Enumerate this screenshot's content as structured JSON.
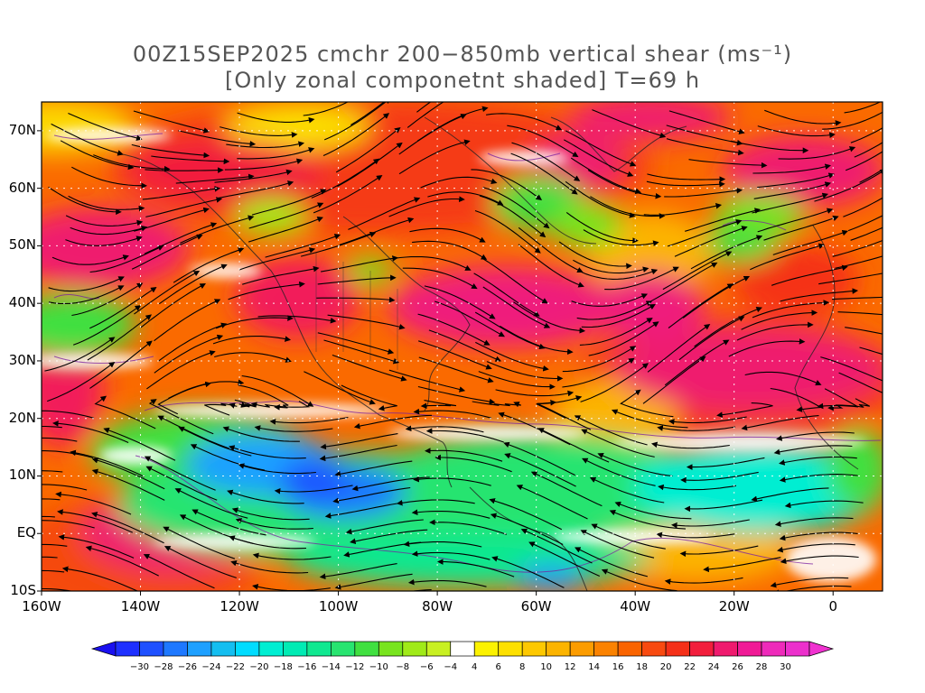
{
  "title": {
    "line1": "00Z15SEP2025 cmchr 200−850mb vertical shear (ms⁻¹)",
    "line2": "[Only zonal componetnt shaded] T=69 h"
  },
  "map": {
    "domain": "Atlantic and eastern Pacific",
    "lon_range": [
      -160,
      10
    ],
    "lat_range": [
      -10,
      75
    ],
    "lat_ticks": [
      {
        "value": 70,
        "label": "70N"
      },
      {
        "value": 60,
        "label": "60N"
      },
      {
        "value": 50,
        "label": "50N"
      },
      {
        "value": 40,
        "label": "40N"
      },
      {
        "value": 30,
        "label": "30N"
      },
      {
        "value": 20,
        "label": "20N"
      },
      {
        "value": 10,
        "label": "10N"
      },
      {
        "value": 0,
        "label": "EQ"
      },
      {
        "value": -10,
        "label": "10S"
      }
    ],
    "lon_ticks": [
      {
        "value": -160,
        "label": "160W"
      },
      {
        "value": -140,
        "label": "140W"
      },
      {
        "value": -120,
        "label": "120W"
      },
      {
        "value": -100,
        "label": "100W"
      },
      {
        "value": -80,
        "label": "80W"
      },
      {
        "value": -60,
        "label": "60W"
      },
      {
        "value": -40,
        "label": "40W"
      },
      {
        "value": -20,
        "label": "20W"
      },
      {
        "value": 0,
        "label": "0"
      }
    ]
  },
  "colorbar": {
    "labels": [
      "−30",
      "−28",
      "−26",
      "−24",
      "−22",
      "−20",
      "−18",
      "−16",
      "−14",
      "−12",
      "−10",
      "−8",
      "−6",
      "−4",
      "4",
      "6",
      "8",
      "10",
      "12",
      "14",
      "16",
      "18",
      "20",
      "22",
      "24",
      "26",
      "28",
      "30"
    ],
    "low_color": "#1a10f0",
    "high_color": "#f032d0",
    "colors": [
      "#1e30ff",
      "#1e50ff",
      "#1e78ff",
      "#1ea0ff",
      "#14bef0",
      "#00dcff",
      "#00eed2",
      "#00ebb4",
      "#10e890",
      "#28e470",
      "#40e040",
      "#78e41e",
      "#a0ea18",
      "#c8f022",
      "#ffffff",
      "#fcf200",
      "#fde000",
      "#fdc800",
      "#fcb400",
      "#fc9c00",
      "#fb8200",
      "#fa6400",
      "#f84a10",
      "#f53018",
      "#f21e3c",
      "#ef1a6e",
      "#f01a96",
      "#ee2aba",
      "#ec30cc"
    ]
  }
}
